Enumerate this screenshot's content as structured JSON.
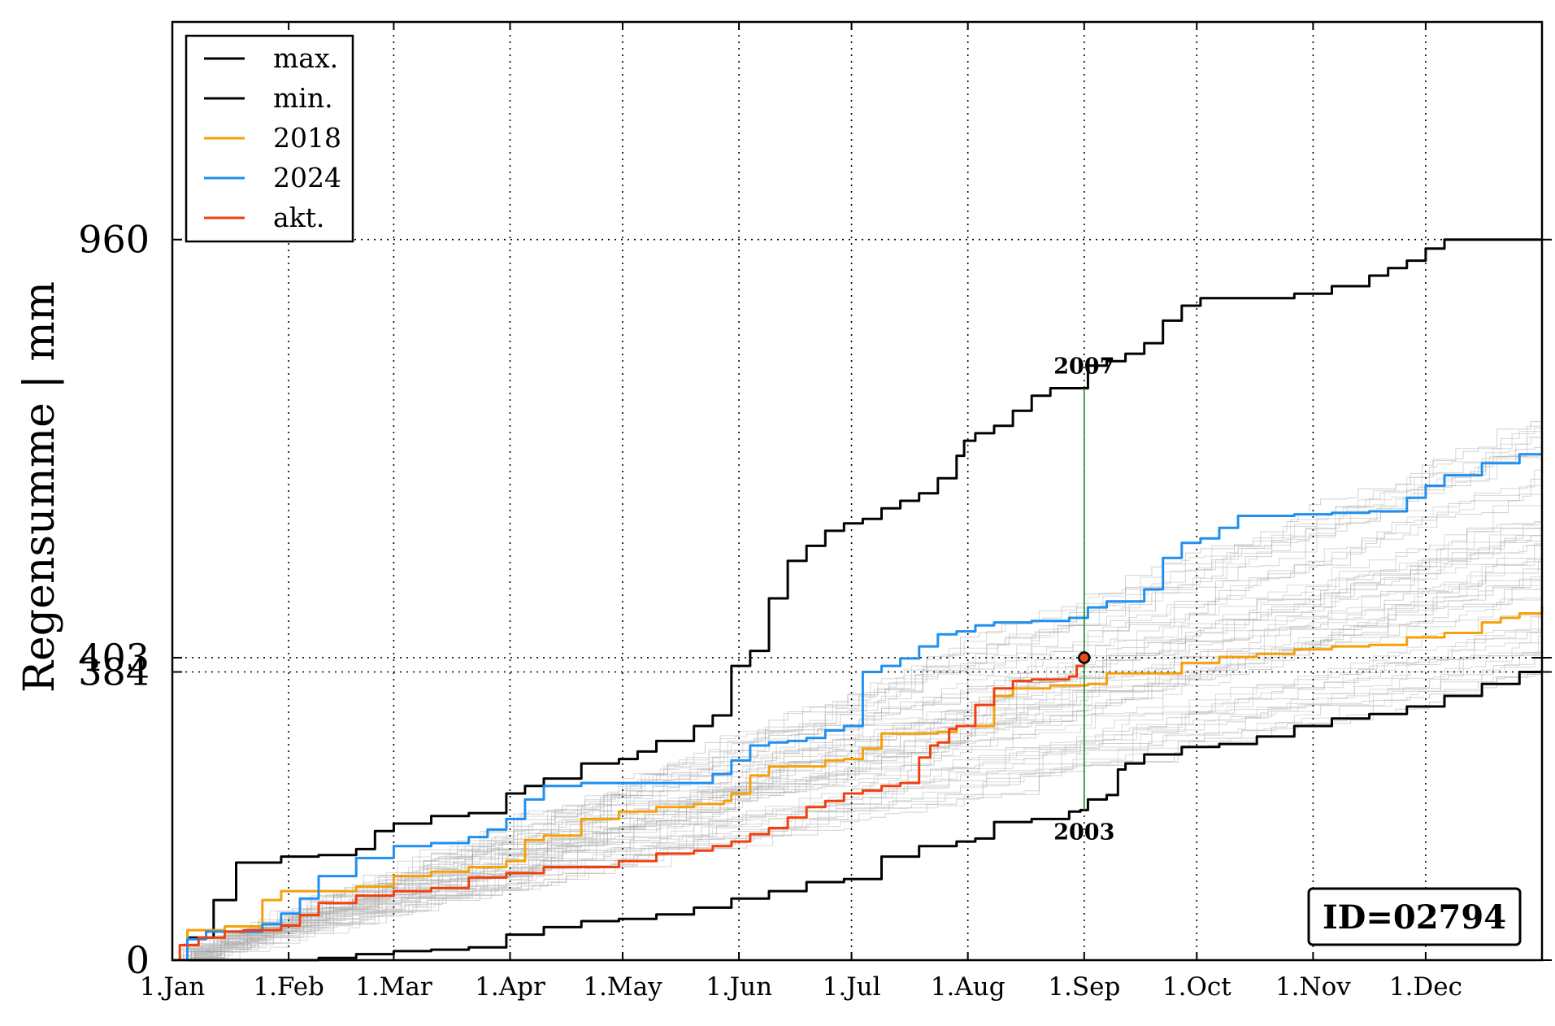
{
  "chart_data": {
    "type": "line",
    "ylabel": "Regensumme | mm",
    "x_unit": "day of year",
    "xlim": [
      1,
      366
    ],
    "ylim": [
      0,
      1250
    ],
    "x_ticks": [
      {
        "label": "1.Jan",
        "day": 1
      },
      {
        "label": "1.Feb",
        "day": 32
      },
      {
        "label": "1.Mar",
        "day": 60
      },
      {
        "label": "1.Apr",
        "day": 91
      },
      {
        "label": "1.May",
        "day": 121
      },
      {
        "label": "1.Jun",
        "day": 152
      },
      {
        "label": "1.Jul",
        "day": 182
      },
      {
        "label": "1.Aug",
        "day": 213
      },
      {
        "label": "1.Sep",
        "day": 244
      },
      {
        "label": "1.Oct",
        "day": 274
      },
      {
        "label": "1.Nov",
        "day": 305
      },
      {
        "label": "1.Dec",
        "day": 335
      }
    ],
    "y_ticks": [
      {
        "label": "0",
        "value": 0
      },
      {
        "label": "384",
        "value": 384
      },
      {
        "label": "403",
        "value": 403
      },
      {
        "label": "960",
        "value": 960
      }
    ],
    "grid": true,
    "legend_position": "top-left",
    "series": [
      {
        "name": "max.",
        "color": "#000000",
        "x": [
          1,
          5,
          12,
          18,
          30,
          40,
          50,
          55,
          60,
          70,
          80,
          90,
          95,
          100,
          110,
          120,
          125,
          130,
          140,
          145,
          150,
          155,
          160,
          165,
          170,
          175,
          180,
          185,
          190,
          195,
          200,
          205,
          210,
          212,
          215,
          220,
          225,
          230,
          235,
          240,
          245,
          250,
          255,
          260,
          265,
          270,
          275,
          280,
          290,
          300,
          310,
          320,
          325,
          330,
          335,
          340,
          350,
          366
        ],
        "y": [
          0,
          30,
          80,
          130,
          138,
          140,
          148,
          172,
          182,
          192,
          196,
          222,
          232,
          242,
          262,
          268,
          278,
          292,
          312,
          326,
          392,
          412,
          482,
          532,
          552,
          572,
          582,
          588,
          602,
          612,
          622,
          642,
          672,
          692,
          702,
          712,
          732,
          752,
          762,
          762,
          792,
          798,
          808,
          822,
          852,
          872,
          882,
          882,
          882,
          888,
          898,
          912,
          922,
          932,
          948,
          960,
          960,
          960
        ]
      },
      {
        "name": "min.",
        "color": "#000000",
        "x": [
          1,
          20,
          40,
          50,
          60,
          70,
          80,
          90,
          100,
          110,
          120,
          130,
          140,
          150,
          160,
          170,
          180,
          190,
          200,
          210,
          215,
          220,
          230,
          240,
          243,
          245,
          250,
          253,
          255,
          260,
          270,
          280,
          290,
          300,
          310,
          320,
          330,
          340,
          350,
          360,
          366
        ],
        "y": [
          0,
          0,
          3,
          8,
          12,
          14,
          17,
          34,
          44,
          52,
          55,
          61,
          70,
          82,
          92,
          104,
          108,
          138,
          152,
          158,
          162,
          184,
          188,
          198,
          200,
          214,
          220,
          254,
          262,
          274,
          284,
          288,
          298,
          312,
          322,
          328,
          338,
          352,
          368,
          384,
          384
        ]
      },
      {
        "name": "2018",
        "color": "#f5a00a",
        "x": [
          1,
          5,
          15,
          25,
          30,
          40,
          50,
          60,
          70,
          80,
          90,
          95,
          100,
          110,
          120,
          130,
          140,
          148,
          150,
          155,
          160,
          170,
          175,
          180,
          185,
          190,
          195,
          200,
          205,
          210,
          215,
          220,
          225,
          230,
          235,
          240,
          245,
          250,
          260,
          270,
          280,
          290,
          300,
          310,
          320,
          330,
          340,
          350,
          355,
          360,
          366
        ],
        "y": [
          0,
          40,
          45,
          80,
          92,
          92,
          98,
          112,
          118,
          124,
          132,
          160,
          166,
          188,
          198,
          204,
          208,
          212,
          222,
          246,
          258,
          258,
          266,
          268,
          282,
          302,
          302,
          302,
          304,
          312,
          312,
          352,
          362,
          362,
          366,
          366,
          368,
          382,
          382,
          396,
          404,
          408,
          414,
          418,
          420,
          430,
          436,
          450,
          456,
          462,
          472
        ]
      },
      {
        "name": "2024",
        "color": "#1f8ff0",
        "x": [
          1,
          5,
          10,
          25,
          30,
          35,
          40,
          50,
          60,
          70,
          80,
          85,
          90,
          95,
          100,
          110,
          120,
          130,
          140,
          145,
          150,
          155,
          160,
          165,
          170,
          175,
          180,
          185,
          190,
          195,
          200,
          205,
          210,
          215,
          220,
          230,
          240,
          245,
          250,
          260,
          265,
          270,
          275,
          280,
          285,
          300,
          310,
          320,
          330,
          335,
          340,
          350,
          360,
          366
        ],
        "y": [
          0,
          28,
          38,
          48,
          62,
          82,
          112,
          136,
          152,
          156,
          164,
          174,
          188,
          214,
          232,
          236,
          236,
          236,
          236,
          248,
          266,
          286,
          290,
          292,
          296,
          306,
          312,
          384,
          392,
          402,
          418,
          434,
          438,
          446,
          450,
          452,
          456,
          470,
          478,
          494,
          536,
          556,
          562,
          576,
          592,
          594,
          596,
          598,
          616,
          632,
          646,
          662,
          674,
          674
        ]
      },
      {
        "name": "akt.",
        "color": "#f04010",
        "x": [
          1,
          3,
          8,
          15,
          20,
          25,
          30,
          35,
          40,
          50,
          60,
          70,
          80,
          90,
          100,
          110,
          120,
          130,
          140,
          145,
          150,
          155,
          160,
          165,
          170,
          175,
          180,
          185,
          190,
          195,
          200,
          203,
          205,
          208,
          210,
          215,
          220,
          225,
          230,
          235,
          240,
          242,
          244
        ],
        "y": [
          0,
          20,
          30,
          38,
          40,
          40,
          46,
          60,
          76,
          86,
          92,
          96,
          110,
          116,
          124,
          124,
          132,
          142,
          146,
          152,
          158,
          168,
          176,
          190,
          204,
          212,
          222,
          226,
          232,
          236,
          270,
          286,
          290,
          308,
          312,
          340,
          362,
          372,
          374,
          374,
          378,
          392,
          403
        ]
      }
    ],
    "background_series_color": "#bfbfbf",
    "annotations": [
      {
        "text": "2007",
        "x": 244,
        "y": 762
      },
      {
        "text": "2003",
        "x": 244,
        "y": 200
      }
    ],
    "marker": {
      "x": 244,
      "y": 403
    },
    "id_box": "ID=02794"
  }
}
